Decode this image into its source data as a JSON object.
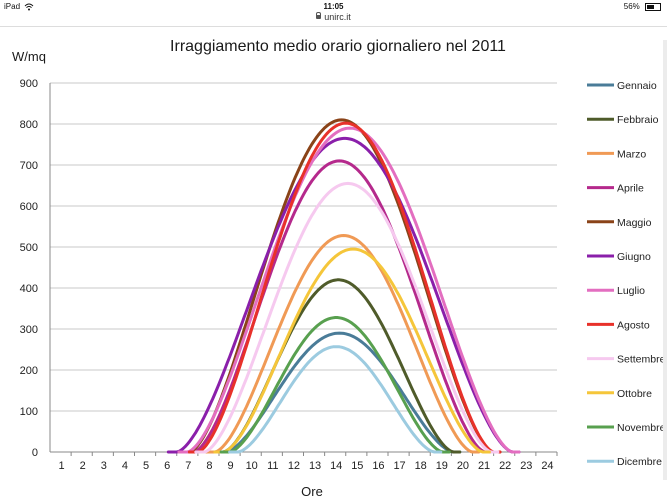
{
  "status_bar": {
    "device": "iPad",
    "time": "11:05",
    "battery": "56%",
    "battery_level": 0.56,
    "icons": [
      "wifi-icon",
      "battery-icon"
    ]
  },
  "browser": {
    "url": "unirc.it",
    "icon": "lock-icon"
  },
  "chart_data": {
    "type": "line",
    "title": "Irraggiamento medio orario giornaliero nel 2011",
    "xlabel": "Ore",
    "ylabel": "W/mq",
    "xlim": [
      0,
      24
    ],
    "ylim": [
      0,
      900
    ],
    "yticks": [
      0,
      100,
      200,
      300,
      400,
      500,
      600,
      700,
      800,
      900
    ],
    "xticks": [
      1,
      2,
      3,
      4,
      5,
      6,
      7,
      8,
      9,
      10,
      11,
      12,
      13,
      14,
      15,
      16,
      17,
      18,
      19,
      20,
      21,
      22,
      23,
      24
    ],
    "grid": "horizontal",
    "legend": "right",
    "series": [
      {
        "name": "Gennaio",
        "color": "#4a7c98",
        "peak": 290,
        "start": 8.3,
        "end": 19.1
      },
      {
        "name": "Febbraio",
        "color": "#4f5b2a",
        "peak": 420,
        "start": 8.2,
        "end": 19.1
      },
      {
        "name": "Marzo",
        "color": "#f09a55",
        "peak": 528,
        "start": 7.8,
        "end": 20.0
      },
      {
        "name": "Aprile",
        "color": "#b5298c",
        "peak": 710,
        "start": 6.8,
        "end": 20.6
      },
      {
        "name": "Maggio",
        "color": "#8a4318",
        "peak": 810,
        "start": 6.6,
        "end": 21.0
      },
      {
        "name": "Giugno",
        "color": "#8a1faa",
        "peak": 765,
        "start": 6.0,
        "end": 21.9
      },
      {
        "name": "Luglio",
        "color": "#e36ec0",
        "peak": 790,
        "start": 6.5,
        "end": 21.9
      },
      {
        "name": "Agosto",
        "color": "#e8312a",
        "peak": 802,
        "start": 7.0,
        "end": 21.0
      },
      {
        "name": "Settembre",
        "color": "#f6c9ef",
        "peak": 655,
        "start": 7.3,
        "end": 20.9
      },
      {
        "name": "Ottobre",
        "color": "#f5c63a",
        "peak": 495,
        "start": 8.2,
        "end": 20.5
      },
      {
        "name": "Novembre",
        "color": "#58a04f",
        "peak": 328,
        "start": 8.5,
        "end": 18.6
      },
      {
        "name": "Dicembre",
        "color": "#9ccbe0",
        "peak": 257,
        "start": 8.9,
        "end": 18.2
      }
    ]
  }
}
